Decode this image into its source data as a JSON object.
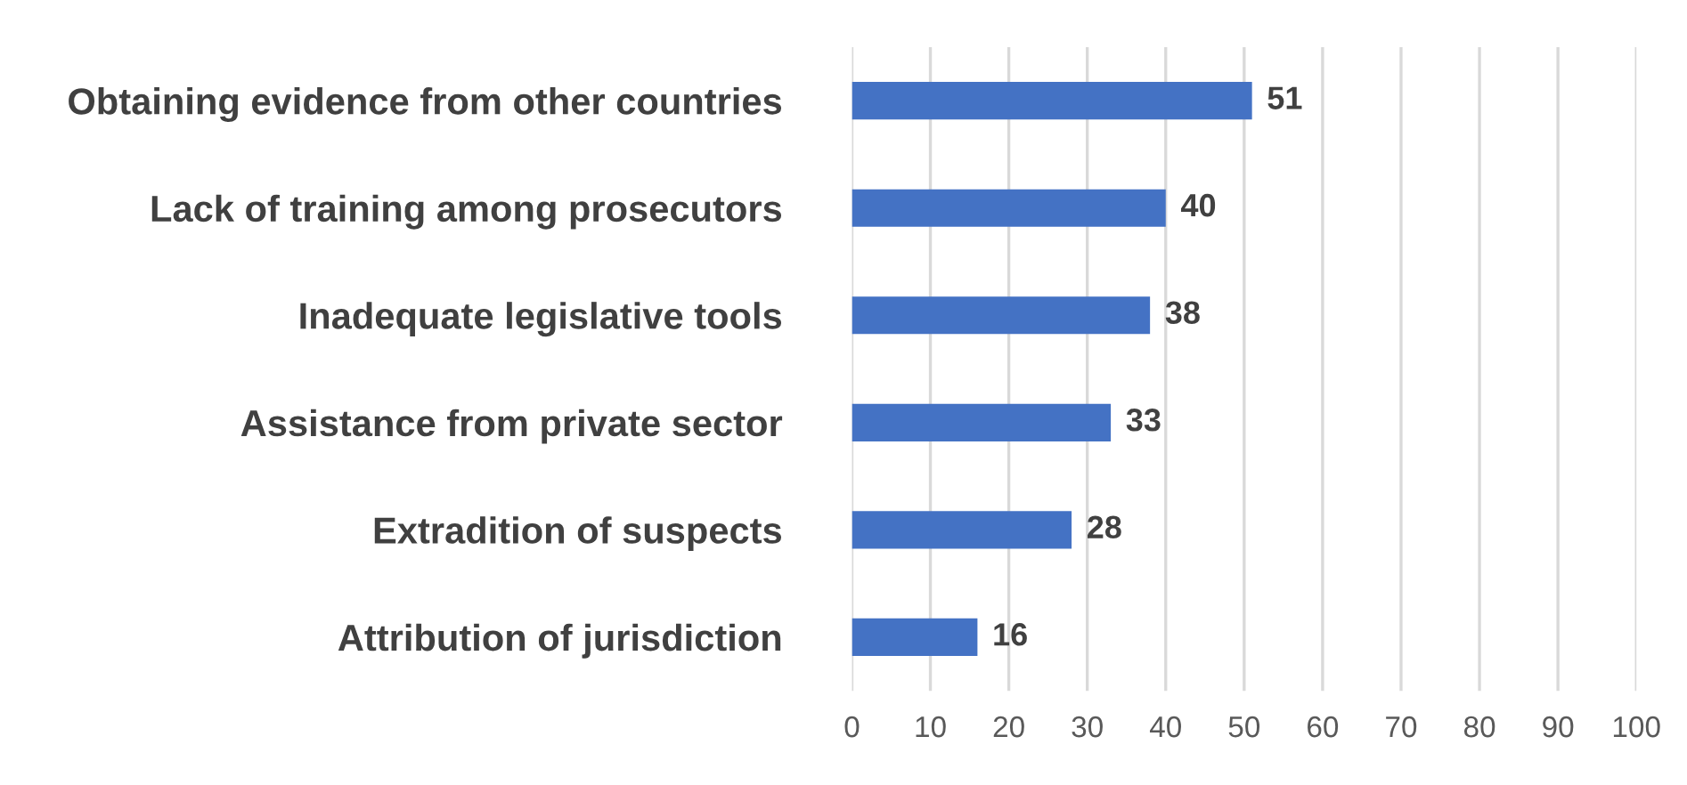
{
  "chart_data": {
    "type": "bar",
    "orientation": "horizontal",
    "categories": [
      "Obtaining evidence from other countries",
      "Lack of training among prosecutors",
      "Inadequate legislative tools",
      "Assistance from private sector",
      "Extradition of suspects",
      "Attribution of jurisdiction"
    ],
    "values": [
      51,
      40,
      38,
      33,
      28,
      16
    ],
    "color": "#4472c4",
    "xlim": [
      0,
      100
    ],
    "xticks": [
      0,
      10,
      20,
      30,
      40,
      50,
      60,
      70,
      80,
      90,
      100
    ],
    "grid": "x",
    "data_labels": true
  }
}
